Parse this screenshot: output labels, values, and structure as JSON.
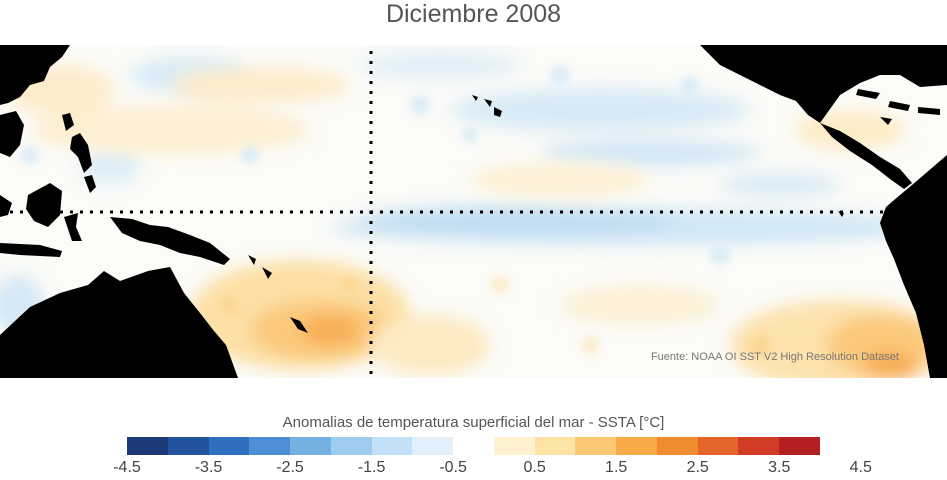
{
  "title": "Diciembre 2008",
  "source": "Fuente: NOAA OI SST V2 High Resolution Dataset",
  "colorbar": {
    "label": "Anomalias de temperatura superficial del mar - SSTA  [°C]",
    "colors": [
      "#1c3a78",
      "#24539e",
      "#2f6fbf",
      "#4d8fd4",
      "#74b0e2",
      "#9fcdf0",
      "#c2e0f6",
      "#e1f0fa",
      "#ffffff",
      "#fdf1cf",
      "#fde3a4",
      "#fbc874",
      "#f8aa48",
      "#f08c2e",
      "#e3652a",
      "#d23c26",
      "#b41f22"
    ],
    "ticks": [
      "-4.5",
      "-3.5",
      "-2.5",
      "-1.5",
      "-0.5",
      "0.5",
      "1.5",
      "2.5",
      "3.5",
      "4.5"
    ]
  },
  "map": {
    "land_color": "#000000",
    "guides": "dotted-lines"
  }
}
